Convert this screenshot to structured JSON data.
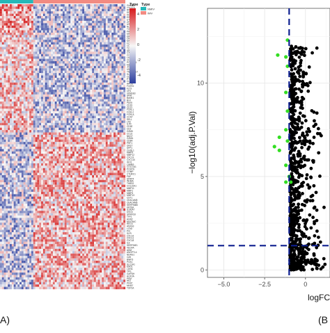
{
  "panels": {
    "a_label": "A)",
    "b_label": "(B"
  },
  "heatmap": {
    "type_legend_title": "Type",
    "type_legend_title_2": "Type",
    "type_legend_entries": [
      {
        "name": "NMIV",
        "color": "#26b8b8"
      },
      {
        "name": "IMV",
        "color": "#f28b82"
      }
    ],
    "color_scale_ticks": [
      "4",
      "2",
      "0",
      "-2",
      "-4"
    ],
    "colors": {
      "high": "#d7191c",
      "mid": "#f7f7f7",
      "low": "#2c3e9e",
      "nmiv": "#26b8b8",
      "imv": "#f28b82"
    },
    "gene_labels": [
      "GABRR",
      "TTTY15",
      "RPS4Y",
      "DDX3Y",
      "KDM5D",
      "EIF1AY",
      "UTY",
      "ZFY",
      "USP9Y",
      "NLGN4Y",
      "TXLNGY",
      "PRKY",
      "KRT15",
      "KRT17",
      "CR2",
      "MS4A1",
      "FCRL5",
      "CD22",
      "TCL1A",
      "IGHD",
      "CXCL13",
      "CCL19",
      "LAMP3",
      "CD79A",
      "POU2AF1",
      "MZB1",
      "JCHAIN",
      "IGLL5",
      "TNFRSF17",
      "SLAMF7",
      "CD38",
      "PTGDS",
      "CLU",
      "APOD",
      "FCER2",
      "FLT3",
      "CR1",
      "VPREB3",
      "SPIB",
      "BANK1",
      "BLK",
      "PAX5",
      "CD19",
      "CD72",
      "FCRL1",
      "FCRL2",
      "FCRLA",
      "CCR7",
      "SELL",
      "LTB",
      "IL7R",
      "CD3E",
      "CD2",
      "GZMK",
      "CCL5",
      "NKG7",
      "GZMA",
      "CD8A",
      "PRF1",
      "GNLY",
      "SPP1",
      "CHI3L1",
      "MMP9",
      "MMP12",
      "CXCL9",
      "CXCL10",
      "IDO1",
      "LAMB3",
      "COL11A1",
      "POSTN",
      "COMP",
      "CTHRC1",
      "FAP",
      "SFRP4",
      "INHBA",
      "THBS2",
      "COL10A1",
      "MMP11",
      "MMP1",
      "MMP3",
      "MMP13",
      "CST1",
      "CEACAM5",
      "CEACAM6",
      "SERPINB5",
      "KRT6A",
      "S100A7",
      "DSG3",
      "SPRR1B",
      "TFF1",
      "AGR2",
      "MUC5AC",
      "REG4",
      "ANXA3",
      "LCN2",
      "PI3",
      "SLPI",
      "CXCL5",
      "CXCL1",
      "CXCL8",
      "IL6",
      "SERPINE1",
      "VEGFA",
      "ADM",
      "ANGPTL4",
      "NDRG1",
      "CA9",
      "BNIP3",
      "PGK1",
      "SLC2A1",
      "ENO1",
      "LDHA",
      "TPI1",
      "GAPDH",
      "ALDOA",
      "PKM",
      "HK2",
      "PFKP",
      "MKI67",
      "TOP2A"
    ],
    "n_samples": 64
  },
  "chart_data": {
    "type": "scatter",
    "title": "",
    "xlabel": "logFC",
    "ylabel": "−log10(adj.P.Val)",
    "xlim": [
      -6,
      1.5
    ],
    "ylim": [
      -0.4,
      14
    ],
    "x_ticks": [
      -5.0,
      -2.5,
      0.0
    ],
    "x_tick_labels": [
      "−5.0",
      "−2.5",
      "0"
    ],
    "y_ticks": [
      0,
      5,
      10
    ],
    "y_tick_labels": [
      "0",
      "5",
      "10"
    ],
    "grid": true,
    "threshold_lines": [
      {
        "orientation": "vertical",
        "value": -1.0,
        "style": "dashed",
        "color": "#0d1f8f"
      },
      {
        "orientation": "horizontal",
        "value": 1.3,
        "style": "dashed",
        "color": "#0d1f8f"
      }
    ],
    "series": [
      {
        "color": "#33dd22",
        "points": [
          [
            -1.1,
            12.3
          ],
          [
            -1.7,
            11.5
          ],
          [
            -1.2,
            11.4
          ],
          [
            -1.1,
            10.9
          ],
          [
            -1.2,
            9.5
          ],
          [
            -1.1,
            8.5
          ],
          [
            -1.2,
            7.5
          ],
          [
            -1.6,
            7.1
          ],
          [
            -1.1,
            6.9
          ],
          [
            -1.9,
            6.6
          ],
          [
            -1.6,
            6.4
          ],
          [
            -1.2,
            5.6
          ],
          [
            -1.0,
            5.0
          ],
          [
            -1.2,
            4.7
          ],
          [
            -0.9,
            4.7
          ]
        ]
      },
      {
        "color": "#000000",
        "count": 700,
        "x_range": [
          -1.0,
          1.5
        ],
        "y_range": [
          0,
          12
        ]
      }
    ]
  }
}
